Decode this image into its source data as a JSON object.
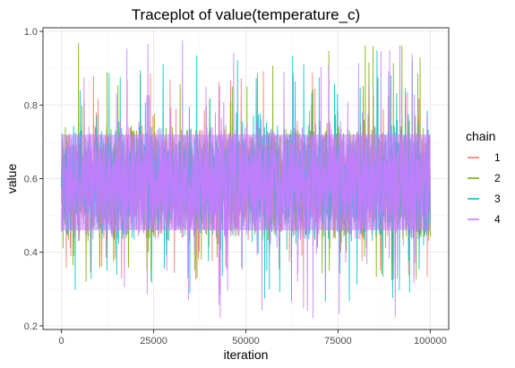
{
  "chart_data": {
    "type": "line",
    "title": "Traceplot of  value(temperature_c)",
    "xlabel": "iteration",
    "ylabel": "value",
    "xlim": [
      -5000,
      105000
    ],
    "ylim": [
      0.19,
      1.01
    ],
    "x_ticks": [
      0,
      25000,
      50000,
      75000,
      100000
    ],
    "x_tick_labels": [
      "0",
      "25000",
      "50000",
      "75000",
      "100000"
    ],
    "y_ticks": [
      0.2,
      0.4,
      0.6,
      0.8,
      1.0
    ],
    "y_tick_labels": [
      "0.2",
      "0.4",
      "0.6",
      "0.8",
      "1.0"
    ],
    "grid": true,
    "legend": {
      "title": "chain",
      "position": "right"
    },
    "series": [
      {
        "name": "1",
        "color": "#F8766D",
        "center": 0.59,
        "bulk_low": 0.45,
        "bulk_high": 0.73,
        "min": 0.32,
        "max": 0.9
      },
      {
        "name": "2",
        "color": "#7CAE00",
        "center": 0.59,
        "bulk_low": 0.45,
        "bulk_high": 0.73,
        "min": 0.31,
        "max": 0.97
      },
      {
        "name": "3",
        "color": "#00BFC4",
        "center": 0.59,
        "bulk_low": 0.45,
        "bulk_high": 0.73,
        "min": 0.26,
        "max": 0.95
      },
      {
        "name": "4",
        "color": "#C77CFF",
        "center": 0.59,
        "bulk_low": 0.45,
        "bulk_high": 0.73,
        "min": 0.22,
        "max": 0.98
      }
    ],
    "x_range_data": [
      0,
      100000
    ]
  }
}
